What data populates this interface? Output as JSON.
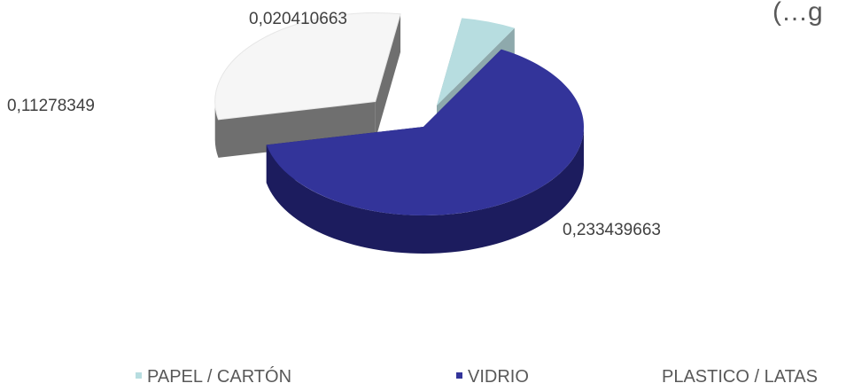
{
  "title_fragment": "(…g",
  "chart_data": {
    "type": "pie",
    "three_d": true,
    "exploded": true,
    "categories": [
      "PAPEL / CARTÓN",
      "VIDRIO",
      "PLASTICO / LATAS"
    ],
    "values": [
      0.020410663,
      0.233439663,
      0.11278349
    ],
    "data_labels": [
      "0,020410663",
      "0,233439663",
      "0,11278349"
    ],
    "colors": [
      "#b7dde0",
      "#33349a",
      "#f6f6f6"
    ],
    "side_colors": [
      "#8ea9ac",
      "#1c1c5e",
      "#6f6f6f"
    ],
    "legend_position": "bottom"
  }
}
